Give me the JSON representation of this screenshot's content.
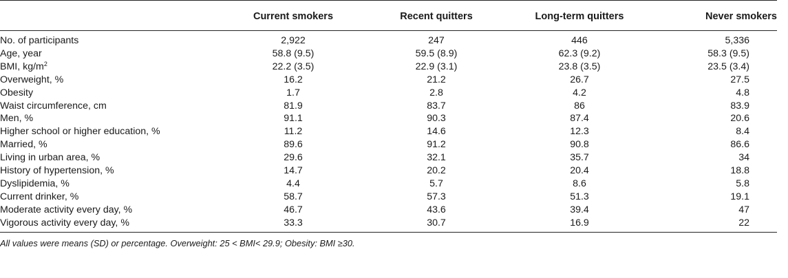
{
  "table": {
    "columns": [
      "",
      "Current smokers",
      "Recent quitters",
      "Long-term quitters",
      "Never smokers"
    ],
    "rows": [
      {
        "label": "No. of participants",
        "values": [
          "2,922",
          "247",
          "446",
          "5,336"
        ]
      },
      {
        "label": "Age, year",
        "values": [
          "58.8 (9.5)",
          "59.5 (8.9)",
          "62.3 (9.2)",
          "58.3 (9.5)"
        ]
      },
      {
        "label": "BMI, kg/m",
        "label_sup": "2",
        "values": [
          "22.2 (3.5)",
          "22.9 (3.1)",
          "23.8 (3.5)",
          "23.5 (3.4)"
        ]
      },
      {
        "label": "Overweight, %",
        "values": [
          "16.2",
          "21.2",
          "26.7",
          "27.5"
        ]
      },
      {
        "label": "Obesity",
        "values": [
          "1.7",
          "2.8",
          "4.2",
          "4.8"
        ]
      },
      {
        "label": "Waist circumference, cm",
        "values": [
          "81.9",
          "83.7",
          "86",
          "83.9"
        ]
      },
      {
        "label": "Men, %",
        "values": [
          "91.1",
          "90.3",
          "87.4",
          "20.6"
        ]
      },
      {
        "label": "Higher school or higher education, %",
        "values": [
          "11.2",
          "14.6",
          "12.3",
          "8.4"
        ]
      },
      {
        "label": "Married, %",
        "values": [
          "89.6",
          "91.2",
          "90.8",
          "86.6"
        ]
      },
      {
        "label": "Living in urban area, %",
        "values": [
          "29.6",
          "32.1",
          "35.7",
          "34"
        ]
      },
      {
        "label": "History of hypertension, %",
        "values": [
          "14.7",
          "20.2",
          "20.4",
          "18.8"
        ]
      },
      {
        "label": "Dyslipidemia, %",
        "values": [
          "4.4",
          "5.7",
          "8.6",
          "5.8"
        ]
      },
      {
        "label": "Current drinker, %",
        "values": [
          "58.7",
          "57.3",
          "51.3",
          "19.1"
        ]
      },
      {
        "label": "Moderate activity every day, %",
        "values": [
          "46.7",
          "43.6",
          "39.4",
          "47"
        ]
      },
      {
        "label": "Vigorous activity every day, %",
        "values": [
          "33.3",
          "30.7",
          "16.9",
          "22"
        ]
      }
    ]
  },
  "footnote": "All values were means (SD) or percentage. Overweight: 25 < BMI< 29.9; Obesity: BMI ≥30."
}
